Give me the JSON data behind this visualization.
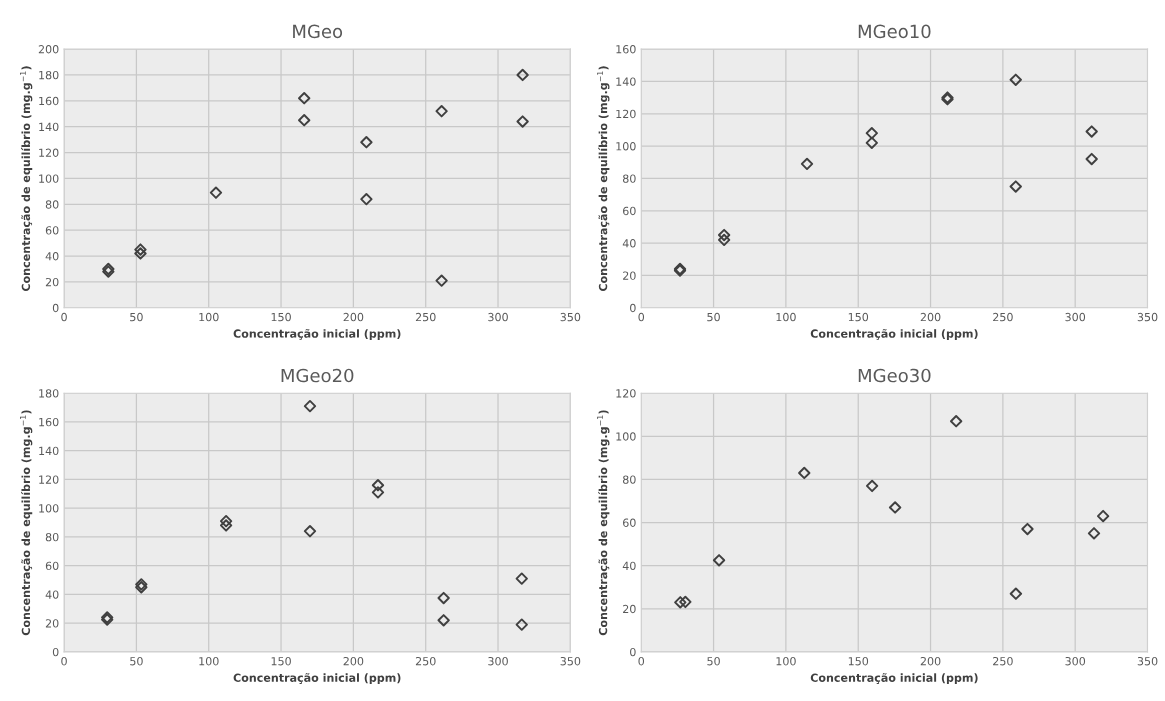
{
  "chart_data": [
    {
      "type": "scatter",
      "title": "MGeo",
      "xlabel": "Concentração inicial (ppm)",
      "ylabel": "Concentração de equilíbrio (mg.g$^{−1}$)",
      "xlim": [
        0,
        350
      ],
      "xticks": [
        0,
        50,
        100,
        150,
        200,
        250,
        300,
        350
      ],
      "ylim": [
        0,
        200
      ],
      "yticks": [
        0,
        20,
        40,
        60,
        80,
        100,
        120,
        140,
        160,
        180,
        200
      ],
      "grid": true,
      "marker": "diamond",
      "series": [
        {
          "color": "#404040",
          "x": [
            30.6,
            30.6,
            52.8,
            52.8,
            105,
            166,
            166,
            209,
            209,
            261,
            261,
            317,
            317
          ],
          "values": [
            30,
            28,
            45,
            42,
            89,
            162,
            145,
            128,
            84,
            152,
            21,
            180,
            144
          ]
        }
      ]
    },
    {
      "type": "scatter",
      "title": "MGeo10",
      "xlabel": "Concentração inicial (ppm)",
      "ylabel": "Concentração de equilíbrio (mg.g$^{−1}$)",
      "xlim": [
        0,
        350
      ],
      "xticks": [
        0,
        50,
        100,
        150,
        200,
        250,
        300,
        350
      ],
      "ylim": [
        0,
        160
      ],
      "yticks": [
        0,
        20,
        40,
        60,
        80,
        100,
        120,
        140,
        160
      ],
      "grid": true,
      "marker": "diamond",
      "series": [
        {
          "color": "#404040",
          "x": [
            26.8,
            26.8,
            57.3,
            57.3,
            114.6,
            159.4,
            159.4,
            211.7,
            211.7,
            258.9,
            258.9,
            311.4,
            311.4
          ],
          "values": [
            24,
            23,
            45,
            42,
            89,
            108,
            102,
            130,
            129,
            141,
            75,
            109,
            92
          ]
        }
      ]
    },
    {
      "type": "scatter",
      "title": "MGeo20",
      "xlabel": "Concentração inicial (ppm)",
      "ylabel": "Concentração de equilíbrio (mg.g$^{−1}$)",
      "xlim": [
        0,
        350
      ],
      "xticks": [
        0,
        50,
        100,
        150,
        200,
        250,
        300,
        350
      ],
      "ylim": [
        0,
        180
      ],
      "yticks": [
        0,
        20,
        40,
        60,
        80,
        100,
        120,
        140,
        160,
        180
      ],
      "grid": true,
      "marker": "diamond",
      "series": [
        {
          "color": "#404040",
          "x": [
            29.8,
            29.8,
            53.4,
            53.4,
            112,
            112,
            170,
            170,
            217,
            217,
            262.4,
            262.4,
            316.4,
            316.4
          ],
          "values": [
            24,
            22.5,
            47,
            45,
            91,
            88,
            171,
            84,
            116,
            111,
            37.5,
            22,
            51,
            19
          ]
        }
      ]
    },
    {
      "type": "scatter",
      "title": "MGeo30",
      "xlabel": "Concentração inicial (ppm)",
      "ylabel": "Concentração de equilíbrio (mg.g$^{−1}$)",
      "xlim": [
        0,
        350
      ],
      "xticks": [
        0,
        50,
        100,
        150,
        200,
        250,
        300,
        350
      ],
      "ylim": [
        0,
        120
      ],
      "yticks": [
        0,
        20,
        40,
        60,
        80,
        100,
        120
      ],
      "grid": true,
      "marker": "diamond",
      "series": [
        {
          "color": "#404040",
          "x": [
            27,
            30.5,
            53.8,
            112.7,
            159.6,
            175.5,
            217.7,
            259,
            267,
            313,
            319.3
          ],
          "values": [
            23,
            23.2,
            42.5,
            83,
            77,
            67,
            107,
            27,
            57,
            55,
            63
          ]
        }
      ]
    }
  ]
}
